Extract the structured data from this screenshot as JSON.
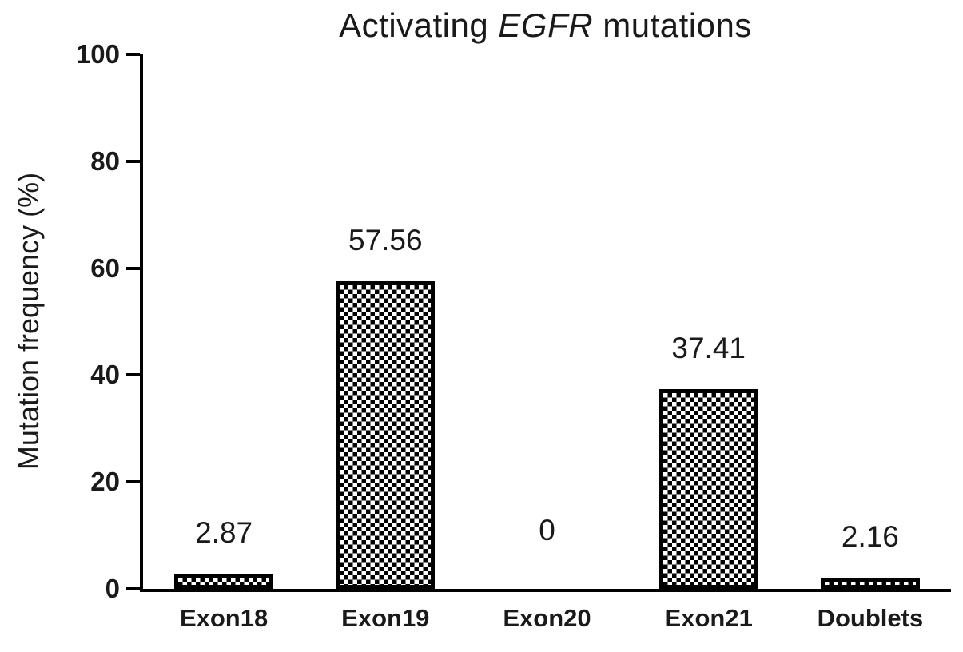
{
  "chart_data": {
    "type": "bar",
    "title": {
      "prefix": "Activating",
      "italic": "EGFR",
      "suffix": "mutations"
    },
    "ylabel": "Mutation frequency (%)",
    "categories": [
      "Exon18",
      "Exon19",
      "Exon20",
      "Exon21",
      "Doublets"
    ],
    "values": [
      2.87,
      57.56,
      0,
      37.41,
      2.16
    ],
    "value_labels": [
      "2.87",
      "57.56",
      "0",
      "37.41",
      "2.16"
    ],
    "ylim": [
      0,
      100
    ],
    "yticks": [
      0,
      20,
      40,
      60,
      80,
      100
    ],
    "grid": false,
    "legend": "none",
    "bar_pattern": "checkerboard",
    "bar_border_color": "#000000",
    "background": "#ffffff"
  }
}
